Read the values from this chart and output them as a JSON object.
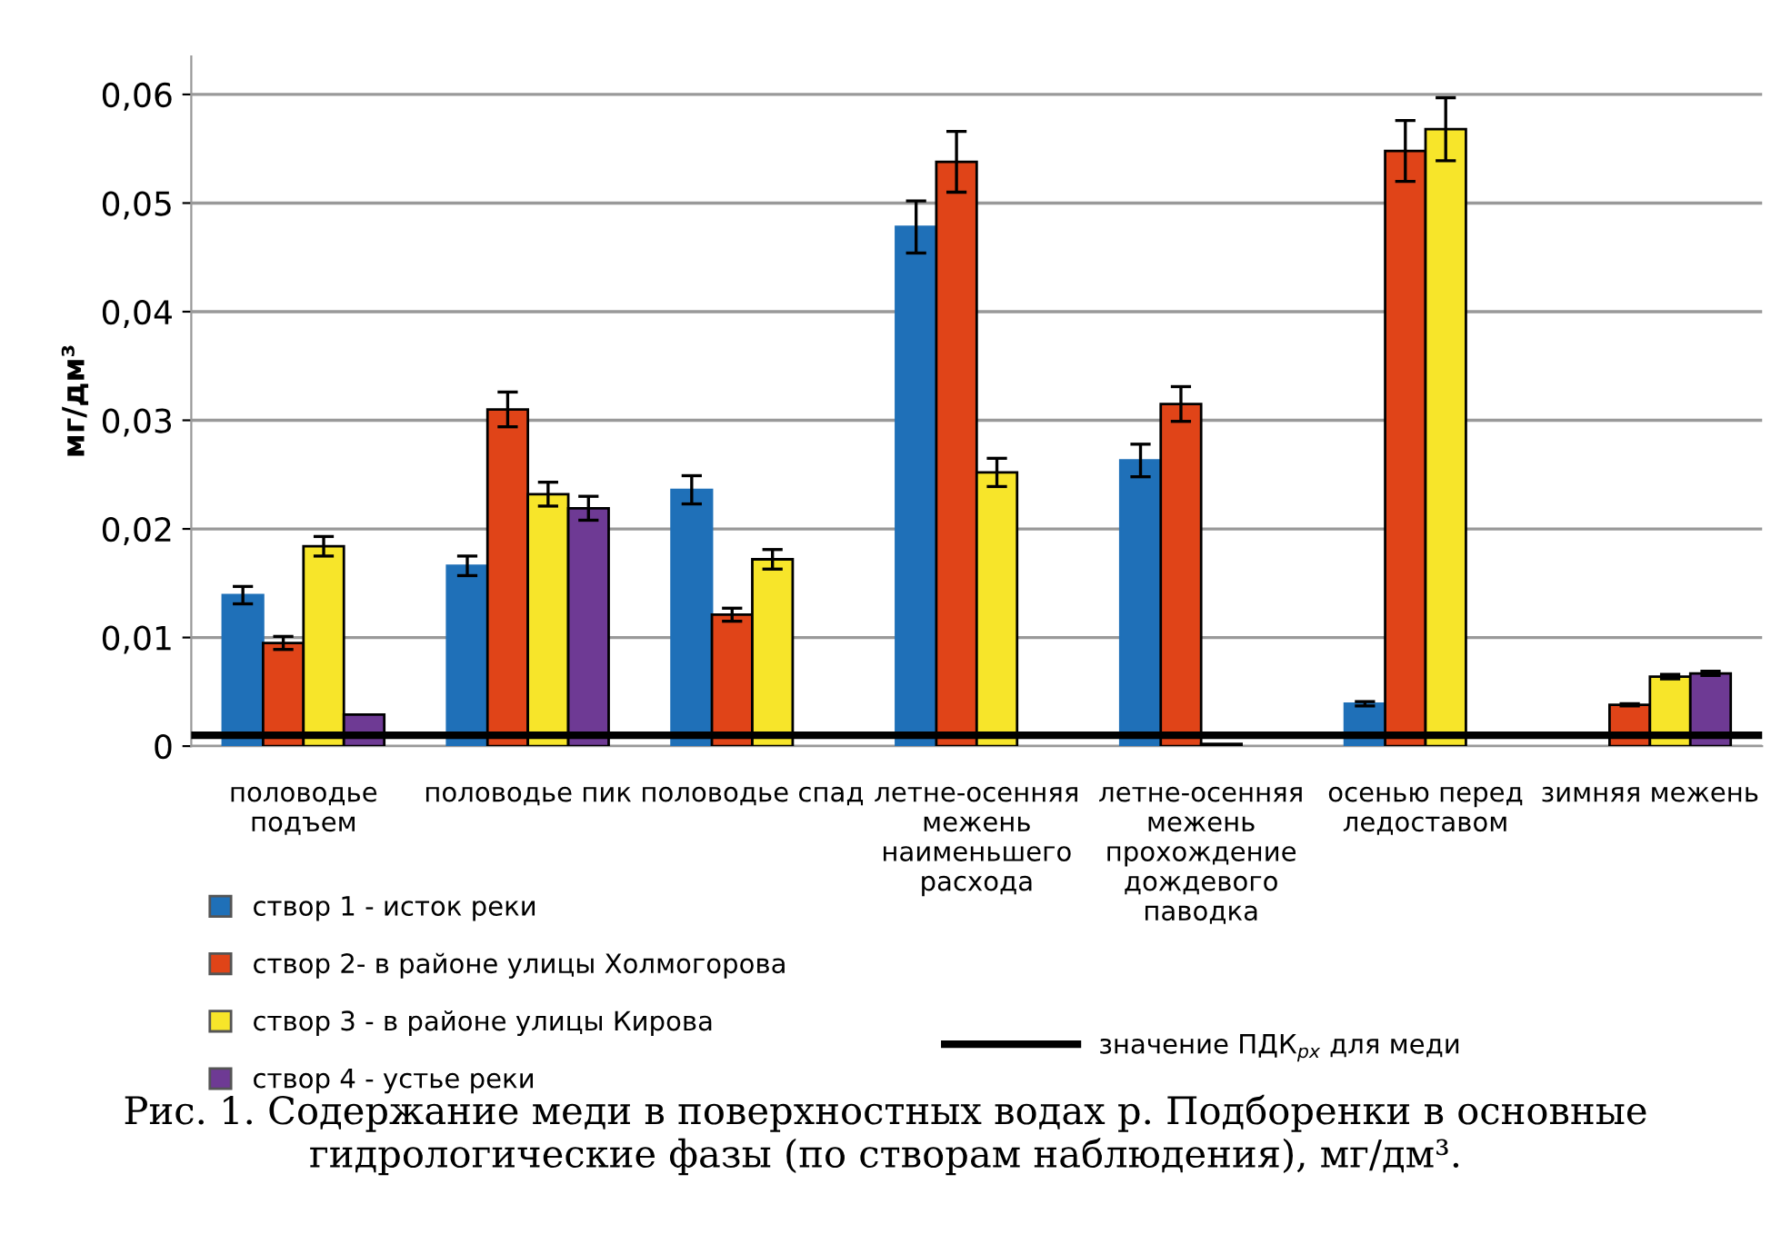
{
  "chart_data": {
    "type": "bar",
    "ylabel": "мг/дм³",
    "categories": [
      "половодье\nподъем",
      "половодье пик",
      "половодье спад",
      "летне-осенняя\nмежень\nнаименьшего\nрасхода",
      "летне-осенняя\nмежень\nпрохождение\nдождевого\nпаводка",
      "осенью перед\nледоставом",
      "зимняя межень"
    ],
    "series": [
      {
        "name": "створ 1 - исток реки",
        "color": "#1f70b8",
        "values": [
          0.0139,
          0.0166,
          0.0236,
          0.0478,
          0.0263,
          0.0039,
          null
        ],
        "errors": [
          0.0008,
          0.0009,
          0.0013,
          0.0024,
          0.0015,
          0.0002,
          null
        ]
      },
      {
        "name": "створ 2- в районе улицы Холмогорова",
        "color": "#e04418",
        "values": [
          0.0095,
          0.031,
          0.0121,
          0.0538,
          0.0315,
          0.0548,
          0.0038
        ],
        "errors": [
          0.0006,
          0.0016,
          0.0006,
          0.0028,
          0.0016,
          0.0028,
          0.0001
        ]
      },
      {
        "name": "створ 3 - в районе улицы Кирова",
        "color": "#f7e52a",
        "values": [
          0.0184,
          0.0232,
          0.0172,
          0.0252,
          0.0002,
          0.0568,
          0.0064
        ],
        "errors": [
          0.0009,
          0.0011,
          0.0009,
          0.0013,
          null,
          0.0029,
          0.0002
        ]
      },
      {
        "name": "створ 4 - устье реки",
        "color": "#6e3a94",
        "values": [
          0.0029,
          0.0219,
          null,
          null,
          null,
          null,
          0.0067
        ],
        "errors": [
          null,
          0.0011,
          null,
          null,
          null,
          null,
          0.0002
        ]
      }
    ],
    "ylim": [
      0,
      0.0635
    ],
    "yticks": [
      {
        "value": 0,
        "label": "0"
      },
      {
        "value": 0.01,
        "label": "0,01"
      },
      {
        "value": 0.02,
        "label": "0,02"
      },
      {
        "value": 0.03,
        "label": "0,03"
      },
      {
        "value": 0.04,
        "label": "0,04"
      },
      {
        "value": 0.05,
        "label": "0,05"
      },
      {
        "value": 0.06,
        "label": "0,06"
      }
    ],
    "grid": "y",
    "legend": "bottom",
    "ref_lines": [
      {
        "axis": "y",
        "value": 0.001,
        "label": "значение ПДК$_{рх}$ для меди",
        "color": "#000000"
      }
    ],
    "annotations": [
      "Рис. 1. Содержание меди в поверхностных водах р. Подборенки в основные гидрологические фазы (по створам наблюдения), мг/дм³."
    ]
  }
}
